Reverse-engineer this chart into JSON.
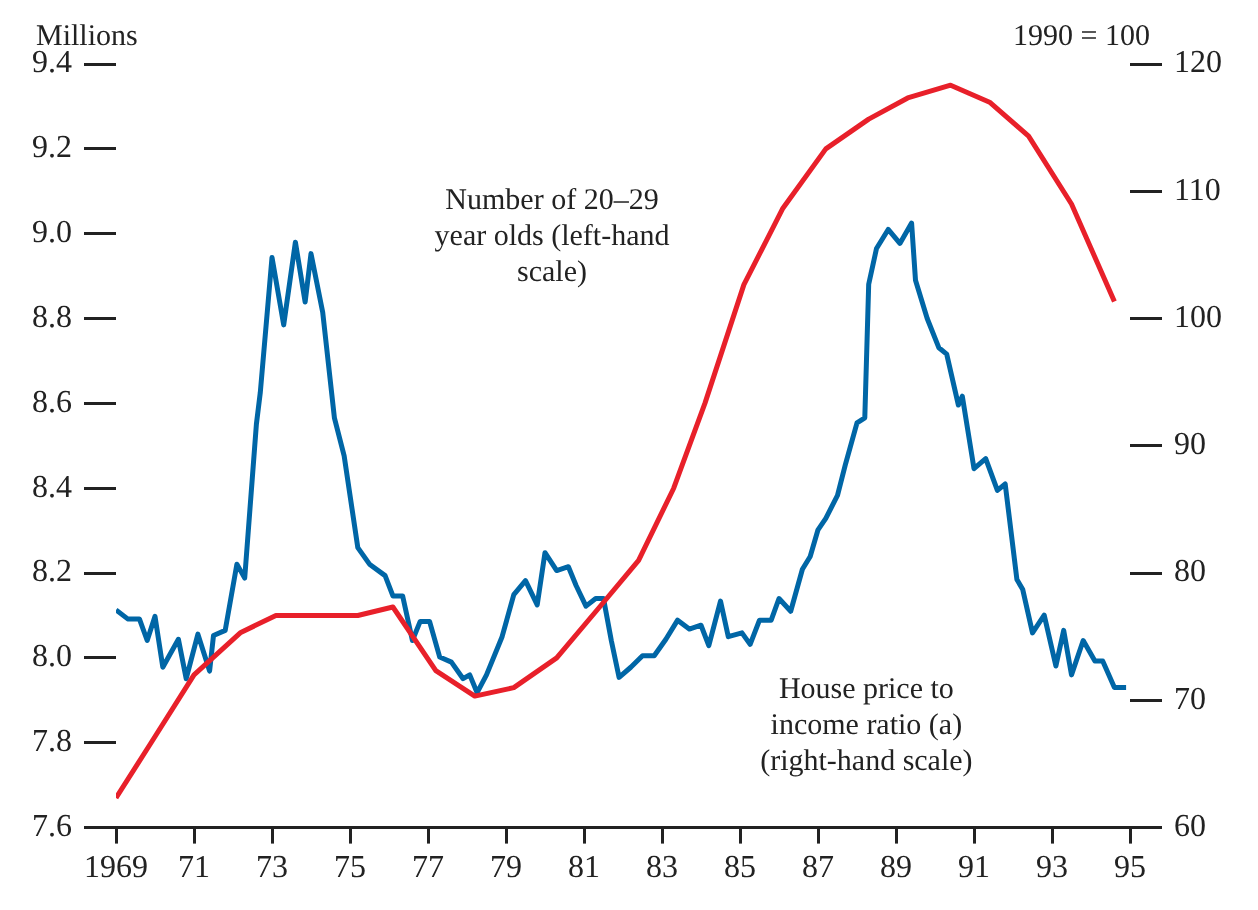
{
  "chart_data": {
    "type": "line",
    "ylabel": "Millions",
    "y2label": "1990 = 100",
    "xlim": [
      1969,
      1995
    ],
    "xticks": [
      {
        "value": 1969,
        "label": "1969"
      },
      {
        "value": 1971,
        "label": "71"
      },
      {
        "value": 1973,
        "label": "73"
      },
      {
        "value": 1975,
        "label": "75"
      },
      {
        "value": 1977,
        "label": "77"
      },
      {
        "value": 1979,
        "label": "79"
      },
      {
        "value": 1981,
        "label": "81"
      },
      {
        "value": 1983,
        "label": "83"
      },
      {
        "value": 1985,
        "label": "85"
      },
      {
        "value": 1987,
        "label": "87"
      },
      {
        "value": 1989,
        "label": "89"
      },
      {
        "value": 1991,
        "label": "91"
      },
      {
        "value": 1993,
        "label": "93"
      },
      {
        "value": 1995,
        "label": "95"
      }
    ],
    "ylim": [
      7.6,
      9.4
    ],
    "yticks": [
      7.6,
      7.8,
      {
        "value": 8,
        "label": "8.0"
      },
      8.2,
      8.4,
      8.6,
      8.8,
      {
        "value": 9,
        "label": "9.0"
      },
      9.2,
      9.4
    ],
    "y2lim": [
      60,
      120
    ],
    "y2ticks": [
      60,
      70,
      80,
      90,
      100,
      110,
      120
    ],
    "grid": false,
    "legend": false,
    "marker": "none",
    "line_style": "solid",
    "series": [
      {
        "name": "Number of 20–29 year olds (left-hand scale)",
        "color": "#e8202a",
        "axis": "y",
        "x": [
          1969.0,
          1969.9,
          1971.0,
          1972.2,
          1973.1,
          1975.2,
          1976.1,
          1977.2,
          1978.2,
          1979.2,
          1980.3,
          1981.4,
          1982.4,
          1983.3,
          1984.1,
          1985.1,
          1986.1,
          1987.2,
          1988.3,
          1989.3,
          1990.4,
          1991.4,
          1992.4,
          1993.5,
          1994.6
        ],
        "values": [
          7.67,
          7.8,
          7.96,
          8.06,
          8.1,
          8.1,
          8.12,
          7.97,
          7.91,
          7.93,
          8.0,
          8.12,
          8.23,
          8.4,
          8.6,
          8.88,
          9.06,
          9.2,
          9.27,
          9.32,
          9.35,
          9.31,
          9.23,
          9.07,
          8.84
        ]
      },
      {
        "name": "House price to income ratio (a) (right-hand scale)",
        "color": "#0066a6",
        "axis": "y2",
        "x": [
          1969.0,
          1969.3,
          1969.6,
          1969.8,
          1970.0,
          1970.2,
          1970.6,
          1970.8,
          1971.1,
          1971.4,
          1971.5,
          1971.8,
          1972.1,
          1972.3,
          1972.6,
          1972.7,
          1973.0,
          1973.3,
          1973.6,
          1973.85,
          1974.0,
          1974.3,
          1974.6,
          1974.85,
          1975.2,
          1975.5,
          1975.9,
          1976.1,
          1976.35,
          1976.6,
          1976.8,
          1977.04,
          1977.3,
          1977.6,
          1977.9,
          1978.07,
          1978.26,
          1978.5,
          1978.9,
          1979.2,
          1979.5,
          1979.8,
          1980.0,
          1980.3,
          1980.6,
          1980.8,
          1981.05,
          1981.3,
          1981.5,
          1981.7,
          1981.9,
          1982.2,
          1982.5,
          1982.8,
          1983.1,
          1983.4,
          1983.7,
          1984.0,
          1984.2,
          1984.5,
          1984.7,
          1985.05,
          1985.26,
          1985.5,
          1985.8,
          1986.0,
          1986.3,
          1986.6,
          1986.8,
          1987.0,
          1987.2,
          1987.5,
          1987.7,
          1988.0,
          1988.2,
          1988.3,
          1988.5,
          1988.8,
          1989.1,
          1989.4,
          1989.5,
          1989.8,
          1990.1,
          1990.3,
          1990.6,
          1990.7,
          1991.0,
          1991.3,
          1991.6,
          1991.8,
          1992.1,
          1992.25,
          1992.5,
          1992.8,
          1993.1,
          1993.3,
          1993.5,
          1993.8,
          1994.1,
          1994.3,
          1994.6,
          1994.9
        ],
        "values": [
          77.1,
          76.4,
          76.4,
          74.7,
          76.6,
          72.6,
          74.8,
          71.7,
          75.2,
          72.3,
          75.1,
          75.5,
          80.7,
          79.6,
          91.7,
          94.2,
          104.8,
          99.5,
          106.0,
          101.3,
          105.1,
          100.5,
          92.2,
          89.2,
          82.0,
          80.7,
          79.8,
          78.2,
          78.2,
          74.7,
          76.2,
          76.2,
          73.4,
          73.0,
          71.7,
          72.0,
          70.6,
          72.0,
          75.0,
          78.3,
          79.4,
          77.5,
          81.6,
          80.2,
          80.5,
          79.0,
          77.4,
          78.0,
          78.0,
          74.7,
          71.8,
          72.6,
          73.5,
          73.5,
          74.8,
          76.3,
          75.6,
          75.9,
          74.3,
          77.8,
          75.0,
          75.3,
          74.4,
          76.3,
          76.3,
          78.0,
          77.0,
          80.3,
          81.3,
          83.4,
          84.3,
          86.1,
          88.5,
          91.8,
          92.2,
          102.7,
          105.5,
          107.0,
          105.9,
          107.5,
          103.0,
          100.0,
          97.7,
          97.2,
          93.2,
          93.9,
          88.2,
          89.0,
          86.5,
          87.0,
          79.5,
          78.7,
          75.3,
          76.7,
          72.7,
          75.5,
          72.0,
          74.7,
          73.1,
          73.1,
          71.0,
          71.0
        ]
      }
    ]
  }
}
